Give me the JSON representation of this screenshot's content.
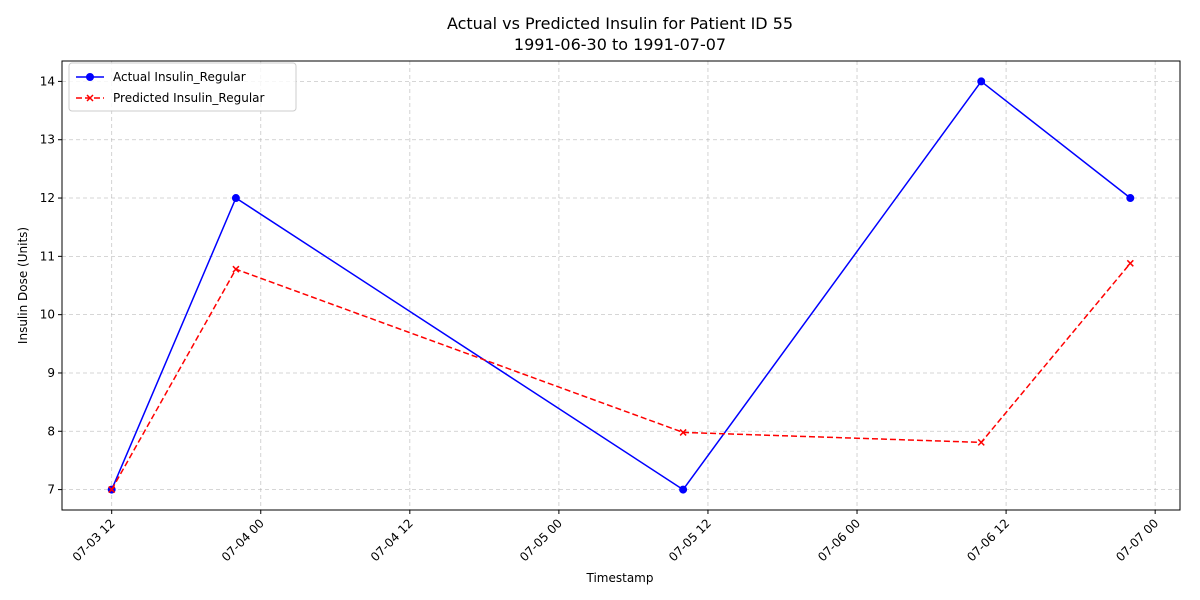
{
  "chart_data": {
    "type": "line",
    "title": "Actual vs Predicted Insulin for Patient ID 55",
    "subtitle": "1991-06-30 to 1991-07-07",
    "xlabel": "Timestamp",
    "ylabel": "Insulin Dose (Units)",
    "x": [
      "1991-07-03 12:00",
      "1991-07-03 22:00",
      "1991-07-05 10:00",
      "1991-07-06 10:00",
      "1991-07-06 22:00"
    ],
    "xlim": [
      "1991-07-03 08:00",
      "1991-07-07 02:00"
    ],
    "ylim": [
      6.65,
      14.35
    ],
    "xticks": [
      "07-03 12",
      "07-04 00",
      "07-04 12",
      "07-05 00",
      "07-05 12",
      "07-06 00",
      "07-06 12",
      "07-07 00"
    ],
    "yticks": [
      "7",
      "8",
      "9",
      "10",
      "11",
      "12",
      "13",
      "14"
    ],
    "grid": true,
    "legend_position": "upper-left",
    "series": [
      {
        "name": "Actual Insulin_Regular",
        "values": [
          7,
          12,
          7,
          14,
          12
        ],
        "color": "#0000ff",
        "line_style": "solid",
        "marker": "circle"
      },
      {
        "name": "Predicted Insulin_Regular",
        "values": [
          7.0,
          10.78,
          7.98,
          7.81,
          10.88
        ],
        "color": "#ff0000",
        "line_style": "dashed",
        "marker": "x"
      }
    ]
  }
}
